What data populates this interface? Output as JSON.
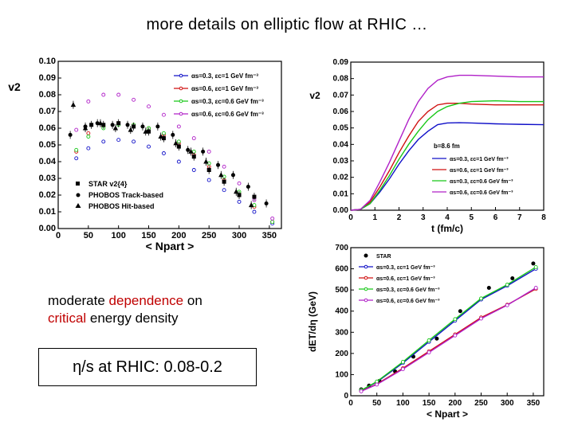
{
  "slide": {
    "title": "more details on elliptic flow at RHIC …",
    "note_part1": "moderate ",
    "note_hl1": "dependence",
    "note_part2": " on",
    "note_hl2": "critical",
    "note_part3": " energy density",
    "eta_box": "η/s at RHIC: 0.08-0.2",
    "colors": {
      "highlight": "#c00000",
      "series_blue": "#1010c8",
      "series_red": "#d01010",
      "series_green": "#18c818",
      "series_purple": "#b020c8"
    }
  },
  "chart_data": [
    {
      "type": "line",
      "ylabel": "v2",
      "xlabel": "< Npart >",
      "xlim": [
        0,
        370
      ],
      "ylim": [
        0,
        0.1
      ],
      "xticks": [
        0,
        50,
        100,
        150,
        200,
        250,
        300,
        350
      ],
      "yticks": [
        0.0,
        0.01,
        0.02,
        0.03,
        0.04,
        0.05,
        0.06,
        0.07,
        0.08,
        0.09,
        0.1
      ],
      "legend": "top-right",
      "series": [
        {
          "name": "αs=0.3, εc=1 GeV fm⁻³",
          "color": "#1010c8",
          "marker": "circle",
          "x": [
            30,
            50,
            75,
            100,
            125,
            150,
            175,
            200,
            225,
            250,
            275,
            300,
            325,
            355
          ],
          "y": [
            0.042,
            0.048,
            0.052,
            0.053,
            0.052,
            0.049,
            0.045,
            0.04,
            0.035,
            0.029,
            0.023,
            0.016,
            0.01,
            0.003
          ]
        },
        {
          "name": "αs=0.6, εc=1 GeV fm⁻³",
          "color": "#d01010",
          "marker": "circle",
          "x": [
            30,
            50,
            75,
            100,
            125,
            150,
            175,
            200,
            225,
            250,
            275,
            300,
            325,
            355
          ],
          "y": [
            0.046,
            0.057,
            0.061,
            0.063,
            0.062,
            0.06,
            0.056,
            0.051,
            0.044,
            0.037,
            0.029,
            0.021,
            0.013,
            0.004
          ]
        },
        {
          "name": "αs=0.3, εc=0.6 GeV fm⁻³",
          "color": "#18c818",
          "marker": "circle",
          "x": [
            30,
            50,
            75,
            100,
            125,
            150,
            175,
            200,
            225,
            250,
            275,
            300,
            325,
            355
          ],
          "y": [
            0.047,
            0.055,
            0.06,
            0.062,
            0.062,
            0.06,
            0.057,
            0.052,
            0.046,
            0.039,
            0.031,
            0.022,
            0.014,
            0.004
          ]
        },
        {
          "name": "αs=0.6, εc=0.6 GeV fm⁻³",
          "color": "#b020c8",
          "marker": "circle",
          "x": [
            30,
            50,
            75,
            100,
            125,
            150,
            175,
            200,
            225,
            250,
            275,
            300,
            325,
            355
          ],
          "y": [
            0.059,
            0.076,
            0.08,
            0.08,
            0.077,
            0.073,
            0.068,
            0.061,
            0.054,
            0.046,
            0.037,
            0.027,
            0.017,
            0.006
          ]
        },
        {
          "name": "STAR v2{4}",
          "color": "#000000",
          "marker": "square",
          "x": [
            55,
            75,
            100,
            125,
            150,
            175,
            200,
            225,
            250,
            275,
            300,
            325
          ],
          "y": [
            0.062,
            0.062,
            0.063,
            0.061,
            0.058,
            0.054,
            0.049,
            0.043,
            0.035,
            0.028,
            0.02,
            0.019
          ]
        },
        {
          "name": "PHOBOS Track-based",
          "color": "#000000",
          "marker": "circle",
          "x": [
            20,
            45,
            65,
            90,
            115,
            140,
            165,
            190,
            215,
            240,
            265,
            290,
            315,
            345
          ],
          "y": [
            0.056,
            0.061,
            0.063,
            0.062,
            0.062,
            0.061,
            0.061,
            0.056,
            0.047,
            0.046,
            0.038,
            0.032,
            0.025,
            0.015
          ]
        },
        {
          "name": "PHOBOS Hit-based",
          "color": "#000000",
          "marker": "triangle",
          "x": [
            25,
            45,
            70,
            95,
            120,
            145,
            170,
            195,
            220,
            245,
            270,
            295,
            320
          ],
          "y": [
            0.074,
            0.06,
            0.063,
            0.06,
            0.059,
            0.058,
            0.055,
            0.051,
            0.046,
            0.04,
            0.032,
            0.022,
            0.014
          ]
        }
      ]
    },
    {
      "type": "line",
      "ylabel": "v2",
      "xlabel": "t  (fm/c)",
      "xlim": [
        0,
        8
      ],
      "ylim": [
        0,
        0.09
      ],
      "xticks": [
        0,
        1,
        2,
        3,
        4,
        5,
        6,
        7,
        8
      ],
      "yticks": [
        0.0,
        0.01,
        0.02,
        0.03,
        0.04,
        0.05,
        0.06,
        0.07,
        0.08,
        0.09
      ],
      "annotation": "b=8.6 fm",
      "legend": "bottom-right",
      "series": [
        {
          "name": "αs=0.3, εc=1 GeV fm⁻³",
          "color": "#1010c8",
          "x": [
            0,
            0.4,
            0.8,
            1.2,
            1.6,
            2.0,
            2.4,
            2.8,
            3.2,
            3.6,
            4.0,
            4.5,
            5.0,
            6.0,
            7.0,
            8.0
          ],
          "y": [
            0,
            0.0005,
            0.004,
            0.011,
            0.019,
            0.028,
            0.036,
            0.043,
            0.048,
            0.052,
            0.053,
            0.0532,
            0.053,
            0.0525,
            0.0522,
            0.052
          ]
        },
        {
          "name": "αs=0.6, εc=1 GeV fm⁻³",
          "color": "#d01010",
          "x": [
            0,
            0.4,
            0.8,
            1.2,
            1.6,
            2.0,
            2.4,
            2.8,
            3.2,
            3.6,
            4.0,
            4.5,
            5.0,
            6.0,
            7.0,
            8.0
          ],
          "y": [
            0,
            0.0005,
            0.005,
            0.014,
            0.024,
            0.035,
            0.045,
            0.054,
            0.06,
            0.064,
            0.065,
            0.065,
            0.0645,
            0.064,
            0.064,
            0.064
          ]
        },
        {
          "name": "αs=0.3, εc=0.6 GeV fm⁻³",
          "color": "#18c818",
          "x": [
            0,
            0.4,
            0.8,
            1.2,
            1.6,
            2.0,
            2.4,
            2.8,
            3.2,
            3.6,
            4.0,
            4.5,
            5.0,
            6.0,
            7.0,
            8.0
          ],
          "y": [
            0,
            0.0005,
            0.004,
            0.012,
            0.021,
            0.031,
            0.04,
            0.048,
            0.055,
            0.06,
            0.063,
            0.065,
            0.066,
            0.0665,
            0.066,
            0.066
          ]
        },
        {
          "name": "αs=0.6, εc=0.6 GeV fm⁻³",
          "color": "#b020c8",
          "x": [
            0,
            0.4,
            0.8,
            1.2,
            1.6,
            2.0,
            2.4,
            2.8,
            3.2,
            3.6,
            4.0,
            4.5,
            5.0,
            6.0,
            7.0,
            8.0
          ],
          "y": [
            0,
            0.0005,
            0.006,
            0.017,
            0.029,
            0.042,
            0.055,
            0.066,
            0.074,
            0.079,
            0.081,
            0.082,
            0.082,
            0.0815,
            0.081,
            0.081
          ]
        }
      ]
    },
    {
      "type": "line",
      "ylabel": "dET/dη (GeV)",
      "xlabel": "< Npart >",
      "xlim": [
        0,
        370
      ],
      "ylim": [
        0,
        700
      ],
      "xticks": [
        0,
        50,
        100,
        150,
        200,
        250,
        300,
        350
      ],
      "yticks": [
        0,
        100,
        200,
        300,
        400,
        500,
        600,
        700
      ],
      "legend": "top-left",
      "series": [
        {
          "name": "STAR",
          "color": "#000000",
          "marker": "circle",
          "x": [
            20,
            35,
            55,
            85,
            120,
            165,
            210,
            265,
            310,
            350
          ],
          "y": [
            30,
            48,
            70,
            115,
            185,
            270,
            400,
            510,
            555,
            625
          ]
        },
        {
          "name": "αs=0.3, εc=1 GeV fm⁻³",
          "color": "#1010c8",
          "marker": "circle",
          "x": [
            20,
            50,
            100,
            150,
            200,
            250,
            300,
            355
          ],
          "y": [
            25,
            65,
            155,
            255,
            355,
            455,
            520,
            600
          ]
        },
        {
          "name": "αs=0.6, εc=1 GeV fm⁻³",
          "color": "#d01010",
          "marker": "circle",
          "x": [
            20,
            50,
            100,
            150,
            200,
            250,
            300,
            355
          ],
          "y": [
            22,
            55,
            130,
            210,
            290,
            370,
            430,
            505
          ]
        },
        {
          "name": "αs=0.3, εc=0.6 GeV fm⁻³",
          "color": "#18c818",
          "marker": "circle",
          "x": [
            20,
            50,
            100,
            150,
            200,
            250,
            300,
            355
          ],
          "y": [
            26,
            67,
            160,
            262,
            362,
            460,
            525,
            608
          ]
        },
        {
          "name": "αs=0.6, εc=0.6 GeV fm⁻³",
          "color": "#b020c8",
          "marker": "circle",
          "x": [
            20,
            50,
            100,
            150,
            200,
            250,
            300,
            355
          ],
          "y": [
            21,
            53,
            126,
            205,
            285,
            365,
            428,
            510
          ]
        }
      ]
    }
  ]
}
